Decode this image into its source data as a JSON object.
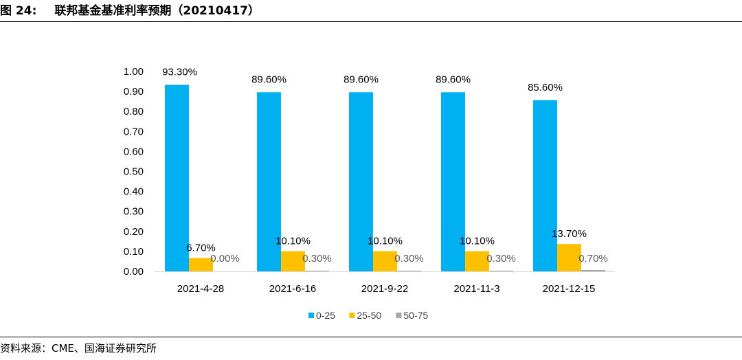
{
  "figure": {
    "number": "图 24:",
    "title": "联邦基金基准利率预期（20210417）",
    "source": "资料来源：CME、国海证券研究所"
  },
  "chart_data": {
    "type": "bar",
    "categories": [
      "2021-4-28",
      "2021-6-16",
      "2021-9-22",
      "2021-11-3",
      "2021-12-15"
    ],
    "series": [
      {
        "name": "0-25",
        "color": "#00b0f0",
        "values": [
          0.933,
          0.896,
          0.896,
          0.896,
          0.856
        ],
        "labels": [
          "93.30%",
          "89.60%",
          "89.60%",
          "89.60%",
          "85.60%"
        ]
      },
      {
        "name": "25-50",
        "color": "#ffc000",
        "values": [
          0.067,
          0.101,
          0.101,
          0.101,
          0.137
        ],
        "labels": [
          "6.70%",
          "10.10%",
          "10.10%",
          "10.10%",
          "13.70%"
        ]
      },
      {
        "name": "50-75",
        "color": "#a5a5a5",
        "label_color": "#595959",
        "values": [
          0.0,
          0.003,
          0.003,
          0.003,
          0.007
        ],
        "labels": [
          "0.00%",
          "0.30%",
          "0.30%",
          "0.30%",
          "0.70%"
        ]
      }
    ],
    "y_ticks": [
      "0.00",
      "0.10",
      "0.20",
      "0.30",
      "0.40",
      "0.50",
      "0.60",
      "0.70",
      "0.80",
      "0.90",
      "1.00"
    ],
    "ylim": [
      0,
      1.0
    ],
    "grid": false,
    "legend_position": "bottom"
  }
}
